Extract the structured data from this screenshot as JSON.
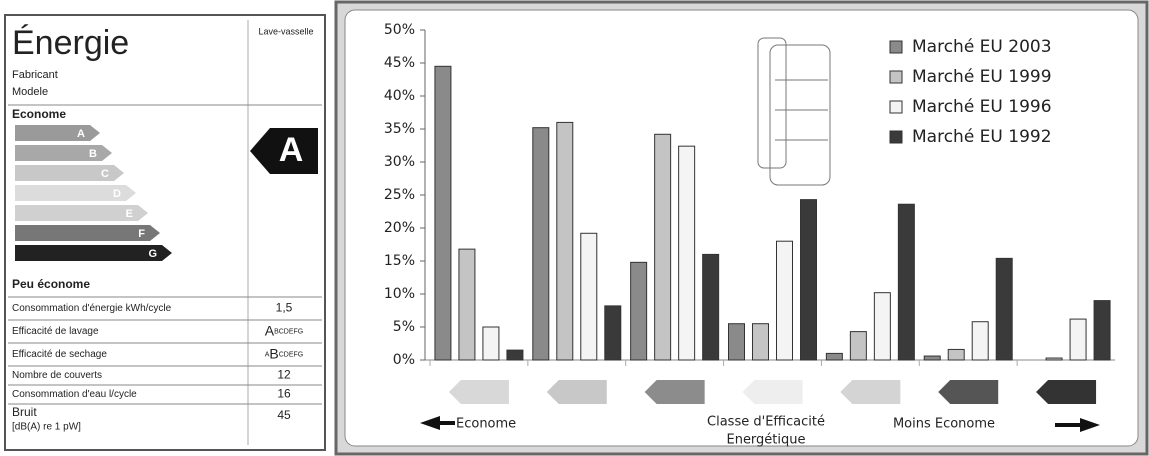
{
  "energy_label": {
    "title": "Énergie",
    "appliance": "Lave-vasselle",
    "maker": "Fabricant",
    "model": "Modele",
    "efficient": "Econome",
    "inefficient": "Peu économe",
    "classes": [
      "A",
      "B",
      "C",
      "D",
      "E",
      "F",
      "G"
    ],
    "rating": "A",
    "rows": [
      {
        "label": "Consommation d'énergie kWh/cycle",
        "value": "1,5"
      },
      {
        "label": "Efficacité de lavage",
        "grade": "A",
        "after": "BCDEFG"
      },
      {
        "label": "Efficacité de sechage",
        "before": "A",
        "grade": "B",
        "after": "CDEFG"
      },
      {
        "label": "Nombre de couverts",
        "value": "12"
      },
      {
        "label": "Consommation d'eau  l/cycle",
        "value": "16"
      },
      {
        "label": "Bruit",
        "sub": "[dB(A) re 1 pW]",
        "value": "45"
      }
    ]
  },
  "chart_data": {
    "type": "bar",
    "categories": [
      null,
      null,
      null,
      null,
      null,
      null,
      null
    ],
    "series": [
      {
        "name": "Marché EU 2003",
        "color": "#8a8a8a",
        "values": [
          44.5,
          35.2,
          14.8,
          5.5,
          1,
          0.6,
          0
        ]
      },
      {
        "name": "Marché EU 1999",
        "color": "#c4c4c4",
        "values": [
          16.8,
          36,
          34.2,
          5.5,
          4.3,
          1.6,
          0.3
        ]
      },
      {
        "name": "Marché EU 1996",
        "color": "#f4f4f4",
        "values": [
          5,
          19.2,
          32.4,
          18,
          10.2,
          5.8,
          6.2
        ]
      },
      {
        "name": "Marché EU 1992",
        "color": "#3a3a3a",
        "values": [
          1.5,
          8.2,
          16,
          24.3,
          23.6,
          15.4,
          9
        ]
      }
    ],
    "ylim": [
      0,
      50
    ],
    "yticks": [
      {
        "value": 0,
        "label": "0%"
      },
      {
        "value": 5,
        "label": "5%"
      },
      {
        "value": 10,
        "label": "10%"
      },
      {
        "value": 15,
        "label": "15%"
      },
      {
        "value": 20,
        "label": "20%"
      },
      {
        "value": 25,
        "label": "25%"
      },
      {
        "value": 30,
        "label": "30%"
      },
      {
        "value": 35,
        "label": "35%"
      },
      {
        "value": 40,
        "label": "40%"
      },
      {
        "value": 45,
        "label": "45%"
      },
      {
        "value": 50,
        "label": "50%"
      }
    ],
    "x_label": [
      "Classe d'Efficacité",
      "Energétique"
    ],
    "annotations": [
      "Econome",
      "Moins Econome"
    ],
    "legend": "upper right"
  }
}
